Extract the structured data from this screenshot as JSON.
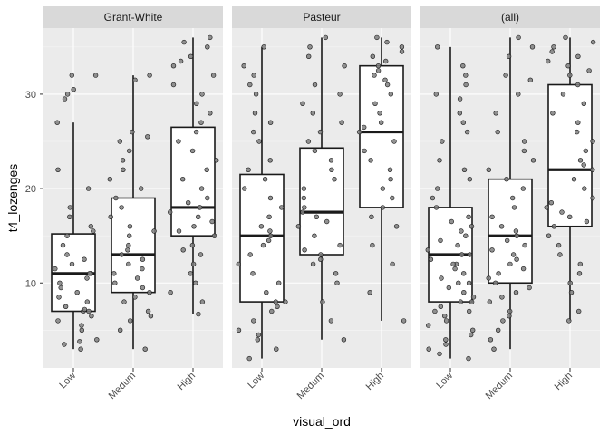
{
  "chart_data": {
    "type": "boxplot",
    "xlabel": "visual_ord",
    "ylabel": "t4_lozenges",
    "ylim": [
      1,
      37
    ],
    "yticks": [
      10,
      20,
      30
    ],
    "categories": [
      "Low",
      "Medum",
      "High"
    ],
    "grid": true,
    "colors": {
      "panel_bg": "#ebebeb",
      "grid_major": "#ffffff",
      "strip_bg": "#d9d9d9",
      "box_fill": "#ffffff",
      "box_line": "#1a1a1a",
      "point_fill": "#7f7f7f",
      "point_stroke": "#1a1a1a"
    },
    "panels": [
      {
        "facet": "Grant-White",
        "boxes": [
          {
            "category": "Low",
            "whisker_low": 3,
            "q1": 7,
            "median": 11,
            "q3": 15.2,
            "whisker_high": 27
          },
          {
            "category": "Medum",
            "whisker_low": 3,
            "q1": 9,
            "median": 13,
            "q3": 19,
            "whisker_high": 32
          },
          {
            "category": "High",
            "whisker_low": 6.7,
            "q1": 15,
            "median": 18,
            "q3": 26.5,
            "whisker_high": 36
          }
        ],
        "points": [
          {
            "category": "Low",
            "y": [
              3,
              3.5,
              3.8,
              4,
              5,
              5.5,
              6,
              6.5,
              7,
              7,
              7.2,
              7.5,
              8,
              8.5,
              9,
              9.5,
              10,
              10.5,
              11,
              11,
              11.5,
              12,
              12.5,
              13,
              14,
              15,
              15.5,
              16,
              17,
              18,
              20,
              22,
              27,
              29.5,
              30,
              30.5,
              32,
              32
            ]
          },
          {
            "category": "Medum",
            "y": [
              3,
              5,
              6,
              6.5,
              7,
              8,
              8.5,
              9,
              9.5,
              10,
              10.5,
              11,
              11.5,
              12,
              12.5,
              13,
              13.5,
              14,
              15,
              15.5,
              16,
              17,
              18,
              19,
              20,
              21,
              22,
              23,
              24,
              25,
              25.5,
              26,
              31.5,
              32
            ]
          },
          {
            "category": "High",
            "y": [
              6.7,
              8,
              9,
              10,
              11,
              12,
              13,
              13.5,
              14,
              15,
              15.5,
              16,
              16.5,
              17,
              17.5,
              18,
              18,
              18.5,
              19,
              20,
              21,
              22,
              23,
              24,
              25,
              26,
              27,
              28,
              29,
              30,
              31,
              32,
              33,
              33.5,
              34,
              35,
              35.5,
              36
            ]
          }
        ]
      },
      {
        "facet": "Pasteur",
        "boxes": [
          {
            "category": "Low",
            "whisker_low": 2,
            "q1": 8,
            "median": 15,
            "q3": 21.5,
            "whisker_high": 35
          },
          {
            "category": "Medum",
            "whisker_low": 4,
            "q1": 13,
            "median": 17.5,
            "q3": 24.3,
            "whisker_high": 36
          },
          {
            "category": "High",
            "whisker_low": 6,
            "q1": 18,
            "median": 26,
            "q3": 33,
            "whisker_high": 36
          }
        ],
        "points": [
          {
            "category": "Low",
            "y": [
              2,
              3,
              4,
              4.5,
              5,
              6,
              7,
              7.5,
              8,
              8,
              9,
              10,
              11,
              12,
              13,
              14,
              14.5,
              15,
              15.5,
              16,
              17,
              18,
              19,
              20,
              21,
              22,
              23,
              25,
              26,
              27,
              28,
              30,
              31,
              32,
              33,
              35
            ]
          },
          {
            "category": "Medum",
            "y": [
              4,
              6,
              8,
              10,
              11,
              12,
              12.5,
              13,
              13.5,
              14,
              15,
              16,
              16.5,
              17,
              17.5,
              18,
              19,
              20,
              21,
              22,
              23,
              24,
              25,
              26,
              27,
              28,
              29,
              30,
              31,
              33,
              34,
              35,
              36
            ]
          },
          {
            "category": "High",
            "y": [
              6,
              9,
              12,
              14,
              16,
              17,
              18,
              19,
              20,
              21,
              22,
              23,
              24,
              25,
              26,
              26.5,
              27,
              28,
              29,
              30,
              31,
              31.5,
              32,
              32.5,
              33,
              33.5,
              34,
              34.5,
              35,
              35.5,
              36
            ]
          }
        ]
      },
      {
        "facet": "(all)",
        "boxes": [
          {
            "category": "Low",
            "whisker_low": 2,
            "q1": 8,
            "median": 13,
            "q3": 18,
            "whisker_high": 35
          },
          {
            "category": "Medum",
            "whisker_low": 3,
            "q1": 10,
            "median": 15,
            "q3": 21,
            "whisker_high": 36
          },
          {
            "category": "High",
            "whisker_low": 6,
            "q1": 16,
            "median": 22,
            "q3": 31,
            "whisker_high": 36
          }
        ],
        "points": [
          {
            "category": "Low",
            "y": [
              2,
              2.5,
              3,
              3.5,
              4,
              4.5,
              5,
              5.5,
              6,
              6.5,
              7,
              7,
              7.5,
              8,
              8,
              8.5,
              9,
              9.5,
              10,
              10,
              10.5,
              11,
              11.5,
              12,
              12,
              12.5,
              13,
              13,
              13.5,
              14,
              14.5,
              15,
              15.5,
              16,
              16.5,
              17,
              18,
              19,
              20,
              21,
              22,
              23,
              25,
              26,
              27,
              28,
              29.5,
              30,
              31,
              32,
              33,
              35
            ]
          },
          {
            "category": "Medum",
            "y": [
              3,
              4,
              5,
              6,
              6.5,
              7,
              8,
              8.5,
              9,
              9.5,
              10,
              10.5,
              11,
              11.5,
              12,
              12.5,
              13,
              13.5,
              14,
              14.5,
              15,
              15.5,
              16,
              17,
              18,
              19,
              20,
              21,
              22,
              23,
              24,
              25,
              26,
              28,
              30,
              31.5,
              32,
              34,
              35,
              36
            ]
          },
          {
            "category": "High",
            "y": [
              6,
              7,
              9,
              10,
              11,
              12,
              13,
              14,
              15,
              16,
              16.5,
              17,
              17.5,
              18,
              18.5,
              19,
              20,
              21,
              22,
              22.5,
              23,
              24,
              25,
              26,
              27,
              28,
              29,
              30,
              31,
              32,
              32.5,
              33,
              33.5,
              34,
              34.5,
              35,
              35.5,
              36
            ]
          }
        ]
      }
    ]
  }
}
